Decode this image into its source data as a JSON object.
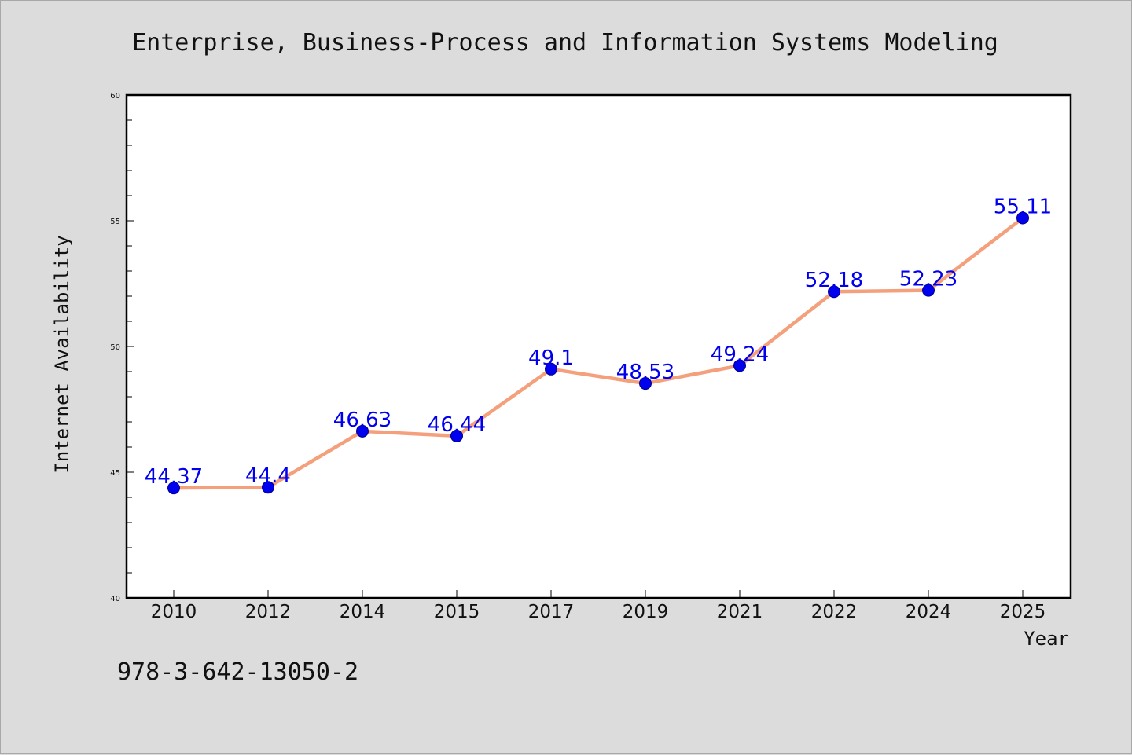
{
  "chart_data": {
    "type": "line",
    "title": "Enterprise, Business-Process and Information Systems Modeling",
    "xlabel": "Year",
    "ylabel": "Internet Availability",
    "categories": [
      "2010",
      "2012",
      "2014",
      "2015",
      "2017",
      "2019",
      "2021",
      "2022",
      "2024",
      "2025"
    ],
    "series": [
      {
        "values": [
          44.37,
          44.4,
          46.63,
          46.44,
          49.1,
          48.53,
          49.24,
          52.18,
          52.23,
          55.11
        ]
      }
    ],
    "data_labels": [
      "44.37",
      "44.4",
      "46.63",
      "46.44",
      "49.1",
      "48.53",
      "49.24",
      "52.18",
      "52.23",
      "55.11"
    ],
    "ylim": [
      40,
      60
    ],
    "yticks": [
      40,
      45,
      50,
      55,
      60
    ],
    "grid": false,
    "line_color": "#f4a07c",
    "marker_color": "#0000ee",
    "label_color": "#0000ee"
  },
  "footer_text": "978-3-642-13050-2"
}
